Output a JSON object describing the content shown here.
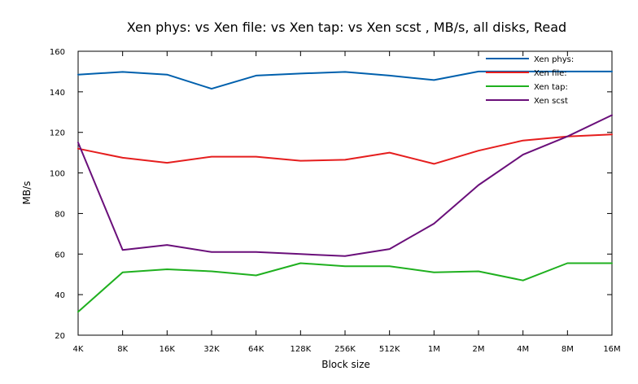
{
  "chart_data": {
    "type": "line",
    "title": "Xen phys: vs Xen file: vs Xen tap: vs Xen scst , MB/s, all disks, Read",
    "xlabel": "Block size",
    "ylabel": "MB/s",
    "categories": [
      "4K",
      "8K",
      "16K",
      "32K",
      "64K",
      "128K",
      "256K",
      "512K",
      "1M",
      "2M",
      "4M",
      "8M",
      "16M"
    ],
    "ylim": [
      20,
      160
    ],
    "yticks": [
      20,
      40,
      60,
      80,
      100,
      120,
      140,
      160
    ],
    "grid": false,
    "legend_position": "top-right",
    "series": [
      {
        "name": "Xen phys:",
        "color": "#0060ad",
        "values": [
          148.5,
          149.8,
          148.5,
          141.5,
          148.0,
          149.0,
          149.8,
          148.0,
          145.8,
          150.0,
          150.0,
          150.0,
          150.0
        ]
      },
      {
        "name": "Xen file:",
        "color": "#e51e1e",
        "values": [
          112.0,
          107.5,
          105.0,
          108.0,
          108.0,
          106.0,
          106.5,
          110.0,
          104.5,
          111.0,
          116.0,
          118.0,
          119.0
        ]
      },
      {
        "name": "Xen tap:",
        "color": "#1fb01f",
        "values": [
          31.5,
          51.0,
          52.5,
          51.5,
          49.5,
          55.5,
          54.0,
          54.0,
          51.0,
          51.5,
          47.0,
          55.5,
          55.5
        ]
      },
      {
        "name": "Xen scst",
        "color": "#6a0f7a",
        "values": [
          115.0,
          62.0,
          64.5,
          61.0,
          61.0,
          60.0,
          59.0,
          62.5,
          75.0,
          94.0,
          109.0,
          118.0,
          128.5
        ]
      }
    ]
  }
}
